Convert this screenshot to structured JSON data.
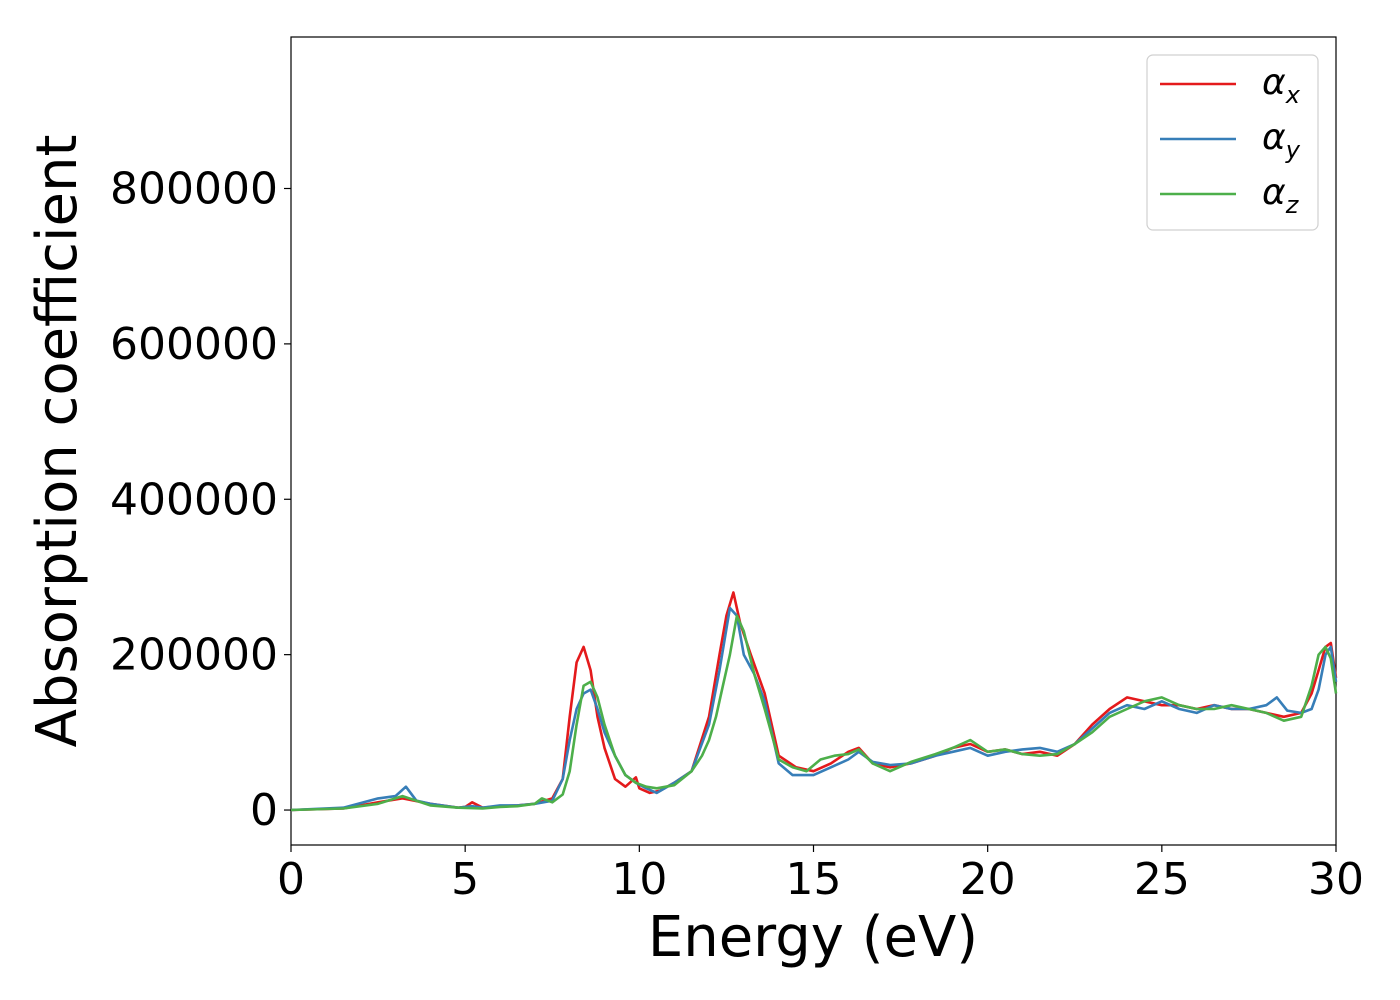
{
  "chart_data": {
    "type": "line",
    "title": "",
    "xlabel": "Energy (eV)",
    "ylabel": "Absorption coefficient",
    "xlim": [
      0,
      30
    ],
    "ylim": [
      -45000,
      995000
    ],
    "xticks": [
      0,
      5,
      10,
      15,
      20,
      25,
      30
    ],
    "yticks": [
      0,
      200000,
      400000,
      600000,
      800000
    ],
    "grid": false,
    "legend_position": "top-right",
    "series": [
      {
        "name": "α",
        "subscript": "x",
        "color": "#e41a1c",
        "x": [
          0,
          1.5,
          2.5,
          3.2,
          4.0,
          4.8,
          5.0,
          5.2,
          5.5,
          6.0,
          6.5,
          7.0,
          7.5,
          7.8,
          8.0,
          8.2,
          8.4,
          8.6,
          8.8,
          9.0,
          9.3,
          9.6,
          9.9,
          10.0,
          10.3,
          10.6,
          11.0,
          11.5,
          12.0,
          12.3,
          12.5,
          12.7,
          12.9,
          13.2,
          13.6,
          14.0,
          14.5,
          15.0,
          15.5,
          16.0,
          16.3,
          16.7,
          17.2,
          17.8,
          18.5,
          19.0,
          19.5,
          20.0,
          20.5,
          21.0,
          21.5,
          22.0,
          22.5,
          23.0,
          23.5,
          24.0,
          24.5,
          25.0,
          25.5,
          26.0,
          26.5,
          27.0,
          27.5,
          28.0,
          28.5,
          29.0,
          29.3,
          29.5,
          29.7,
          29.85,
          30.0
        ],
        "y": [
          0,
          2000,
          10000,
          15000,
          8000,
          3000,
          4000,
          10000,
          3000,
          5000,
          6000,
          8000,
          15000,
          40000,
          120000,
          190000,
          210000,
          180000,
          120000,
          80000,
          40000,
          30000,
          42000,
          28000,
          22000,
          25000,
          35000,
          50000,
          120000,
          200000,
          250000,
          280000,
          240000,
          200000,
          150000,
          70000,
          55000,
          50000,
          60000,
          75000,
          80000,
          60000,
          55000,
          60000,
          70000,
          80000,
          85000,
          75000,
          78000,
          72000,
          75000,
          70000,
          85000,
          110000,
          130000,
          145000,
          140000,
          135000,
          135000,
          130000,
          135000,
          130000,
          130000,
          125000,
          120000,
          125000,
          150000,
          180000,
          210000,
          215000,
          170000
        ]
      },
      {
        "name": "α",
        "subscript": "y",
        "color": "#377eb8",
        "x": [
          0,
          1.5,
          2.5,
          3.0,
          3.3,
          3.6,
          4.0,
          4.8,
          5.2,
          5.5,
          6.0,
          6.5,
          7.0,
          7.5,
          7.8,
          8.0,
          8.2,
          8.4,
          8.6,
          8.8,
          9.0,
          9.3,
          9.6,
          9.9,
          10.2,
          10.5,
          11.0,
          11.5,
          12.0,
          12.3,
          12.6,
          12.8,
          13.0,
          13.3,
          13.6,
          14.0,
          14.4,
          15.0,
          15.5,
          16.0,
          16.3,
          16.7,
          17.2,
          17.8,
          18.5,
          19.0,
          19.5,
          20.0,
          20.5,
          21.0,
          21.5,
          22.0,
          22.5,
          23.0,
          23.5,
          24.0,
          24.5,
          25.0,
          25.5,
          26.0,
          26.5,
          27.0,
          27.5,
          28.0,
          28.3,
          28.6,
          29.0,
          29.3,
          29.5,
          29.7,
          29.85,
          30.0
        ],
        "y": [
          0,
          3000,
          15000,
          18000,
          30000,
          12000,
          8000,
          3000,
          5000,
          3000,
          6000,
          6000,
          8000,
          12000,
          40000,
          90000,
          130000,
          150000,
          155000,
          130000,
          100000,
          70000,
          45000,
          35000,
          28000,
          22000,
          35000,
          50000,
          110000,
          180000,
          260000,
          250000,
          200000,
          175000,
          140000,
          60000,
          45000,
          45000,
          55000,
          65000,
          75000,
          62000,
          58000,
          60000,
          70000,
          75000,
          80000,
          70000,
          75000,
          78000,
          80000,
          75000,
          85000,
          105000,
          125000,
          135000,
          130000,
          140000,
          130000,
          125000,
          135000,
          130000,
          130000,
          135000,
          145000,
          128000,
          125000,
          130000,
          155000,
          200000,
          210000,
          165000
        ]
      },
      {
        "name": "α",
        "subscript": "z",
        "color": "#4daf4a",
        "x": [
          0,
          1.5,
          2.5,
          3.2,
          4.0,
          4.8,
          5.5,
          6.0,
          6.5,
          7.0,
          7.2,
          7.5,
          7.8,
          8.0,
          8.2,
          8.4,
          8.6,
          8.8,
          9.0,
          9.3,
          9.6,
          9.9,
          10.2,
          10.5,
          11.0,
          11.5,
          11.8,
          12.0,
          12.2,
          12.4,
          12.6,
          12.8,
          13.0,
          13.3,
          13.6,
          14.0,
          14.4,
          14.8,
          15.2,
          15.6,
          16.0,
          16.3,
          16.7,
          17.2,
          17.8,
          18.5,
          19.0,
          19.5,
          20.0,
          20.5,
          21.0,
          21.5,
          22.0,
          22.5,
          23.0,
          23.5,
          24.0,
          24.5,
          25.0,
          25.5,
          26.0,
          26.5,
          27.0,
          27.5,
          28.0,
          28.5,
          29.0,
          29.3,
          29.5,
          29.7,
          29.85,
          30.0
        ],
        "y": [
          0,
          2000,
          8000,
          18000,
          6000,
          3000,
          2000,
          4000,
          5000,
          8000,
          15000,
          10000,
          20000,
          50000,
          110000,
          160000,
          165000,
          145000,
          110000,
          70000,
          45000,
          35000,
          30000,
          28000,
          32000,
          50000,
          70000,
          90000,
          120000,
          160000,
          200000,
          250000,
          230000,
          175000,
          130000,
          65000,
          55000,
          50000,
          65000,
          70000,
          72000,
          78000,
          60000,
          50000,
          62000,
          72000,
          80000,
          90000,
          75000,
          78000,
          72000,
          70000,
          72000,
          85000,
          100000,
          120000,
          130000,
          140000,
          145000,
          135000,
          130000,
          130000,
          135000,
          130000,
          125000,
          115000,
          120000,
          160000,
          200000,
          210000,
          195000,
          150000
        ]
      }
    ]
  }
}
